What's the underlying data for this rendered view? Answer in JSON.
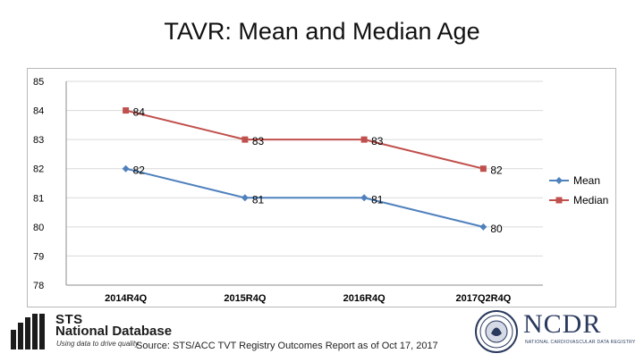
{
  "title": "TAVR: Mean and Median Age",
  "source": "Source: STS/ACC TVT Registry Outcomes Report as of Oct 17, 2017",
  "logos": {
    "sts": {
      "line1": "STS",
      "line2": "National Database",
      "tagline": "Using data to drive quality"
    },
    "ncdr": {
      "word": "NCDR",
      "subtitle": "NATIONAL CARDIOVASCULAR DATA REGISTRY"
    }
  },
  "colors": {
    "mean": "#4f81bd",
    "median": "#c0504d",
    "grid": "#d9d9d9",
    "axis": "#8c8c8c"
  },
  "chart_data": {
    "type": "line",
    "title": "",
    "xlabel": "",
    "ylabel": "",
    "categories": [
      "2014R4Q",
      "2015R4Q",
      "2016R4Q",
      "2017Q2R4Q"
    ],
    "ylim": [
      78,
      85
    ],
    "yticks": [
      "78",
      "79",
      "80",
      "81",
      "82",
      "83",
      "84",
      "85"
    ],
    "grid": true,
    "legend": "right",
    "series": [
      {
        "name": "Mean",
        "values": [
          82,
          81,
          81,
          80
        ],
        "labels": [
          "82",
          "81",
          "81",
          "80"
        ],
        "color": "#4f81bd",
        "marker": "diamond"
      },
      {
        "name": "Median",
        "values": [
          84,
          83,
          83,
          82
        ],
        "labels": [
          "84",
          "83",
          "83",
          "82"
        ],
        "color": "#c0504d",
        "marker": "square"
      }
    ]
  }
}
